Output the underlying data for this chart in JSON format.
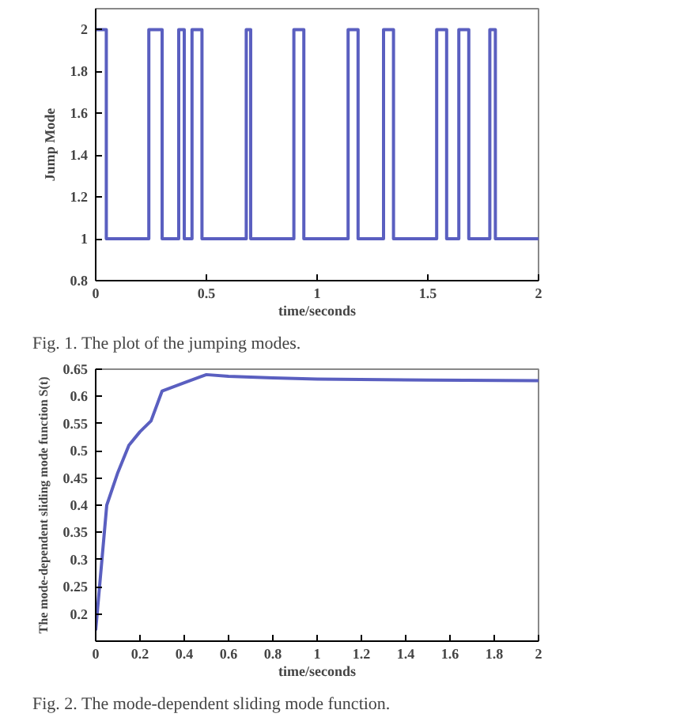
{
  "chart_data": [
    {
      "type": "step",
      "xlabel": "time/seconds",
      "ylabel": "Jump Mode",
      "annotations": [
        "Fig. 1. The plot of the jumping modes."
      ],
      "grid": false,
      "xlim": [
        0,
        2
      ],
      "ylim": [
        0.8,
        2.1
      ],
      "xticks": [
        0,
        0.5,
        1,
        1.5,
        2
      ],
      "yticks": [
        0.8,
        1,
        1.2,
        1.4,
        1.6,
        1.8,
        2
      ],
      "series": [
        {
          "color": "#5a5fc0",
          "x": [
            0,
            0.048,
            0.24,
            0.3,
            0.375,
            0.4,
            0.435,
            0.48,
            0.68,
            0.7,
            0.895,
            0.94,
            1.14,
            1.185,
            1.3,
            1.345,
            1.54,
            1.585,
            1.64,
            1.685,
            1.78,
            1.805,
            2
          ],
          "values": [
            2,
            1,
            2,
            1,
            2,
            1,
            2,
            1,
            2,
            1,
            2,
            1,
            2,
            1,
            2,
            1,
            2,
            1,
            2,
            1,
            2,
            1,
            1
          ]
        }
      ]
    },
    {
      "type": "line",
      "xlabel": "time/seconds",
      "ylabel": "The mode-dependent sliding mode function S(t)",
      "annotations": [
        "Fig. 2. The mode-dependent sliding mode function."
      ],
      "grid": false,
      "xlim": [
        0,
        2
      ],
      "ylim": [
        0.15,
        0.65
      ],
      "xticks": [
        0,
        0.2,
        0.4,
        0.6,
        0.8,
        1,
        1.2,
        1.4,
        1.6,
        1.8,
        2
      ],
      "yticks": [
        0.2,
        0.25,
        0.3,
        0.35,
        0.4,
        0.45,
        0.5,
        0.55,
        0.6,
        0.65
      ],
      "series": [
        {
          "color": "#5a5fc0",
          "x": [
            0,
            0.05,
            0.1,
            0.15,
            0.2,
            0.25,
            0.3,
            0.4,
            0.5,
            0.6,
            0.8,
            1,
            1.5,
            2
          ],
          "values": [
            0.17,
            0.4,
            0.46,
            0.51,
            0.535,
            0.555,
            0.61,
            0.625,
            0.64,
            0.637,
            0.634,
            0.632,
            0.63,
            0.629
          ]
        }
      ]
    }
  ]
}
